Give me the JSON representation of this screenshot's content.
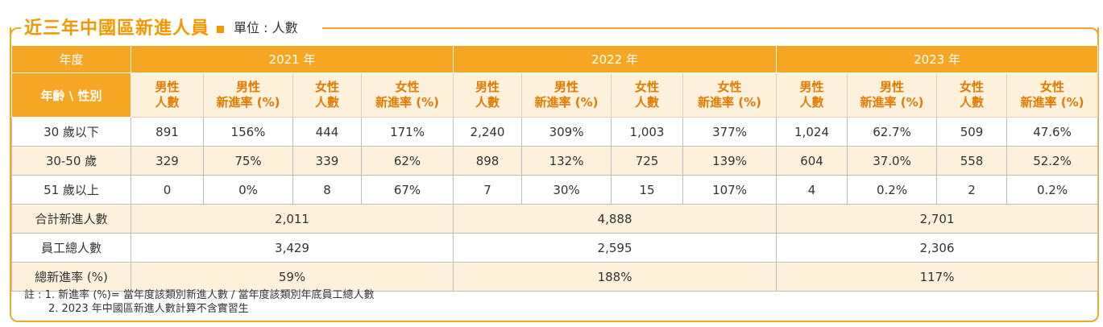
{
  "title": "近三年中國區新進人員",
  "unit": "單位 : 人數",
  "table": {
    "corner_top": "年度",
    "corner_bottom": "年齡 \\ 性別",
    "years": [
      "2021 年",
      "2022 年",
      "2023 年"
    ],
    "col_headers": [
      [
        "男性",
        "人數"
      ],
      [
        "男性",
        "新進率 (%)"
      ],
      [
        "女性",
        "人數"
      ],
      [
        "女性",
        "新進率 (%)"
      ]
    ],
    "rows": [
      {
        "label": "30 歲以下",
        "values": [
          "891",
          "156%",
          "444",
          "171%",
          "2,240",
          "309%",
          "1,003",
          "377%",
          "1,024",
          "62.7%",
          "509",
          "47.6%"
        ]
      },
      {
        "label": "30-50 歲",
        "values": [
          "329",
          "75%",
          "339",
          "62%",
          "898",
          "132%",
          "725",
          "139%",
          "604",
          "37.0%",
          "558",
          "52.2%"
        ]
      },
      {
        "label": "51 歲以上",
        "values": [
          "0",
          "0%",
          "8",
          "67%",
          "7",
          "30%",
          "15",
          "107%",
          "4",
          "0.2%",
          "2",
          "0.2%"
        ]
      }
    ],
    "summary": [
      {
        "label": "合計新進人數",
        "values": [
          "2,011",
          "4,888",
          "2,701"
        ]
      },
      {
        "label": "員工總人數",
        "values": [
          "3,429",
          "2,595",
          "2,306"
        ]
      },
      {
        "label": "總新進率 (%)",
        "values": [
          "59%",
          "188%",
          "117%"
        ]
      }
    ]
  },
  "notes": {
    "line1": "註 : 1. 新進率 (%)= 當年度該類別新進人數 / 當年度該類別年底員工總人數",
    "line2": "2. 2023 年中國區新進人數計算不含實習生"
  },
  "colors": {
    "accent": "#f5a623",
    "title": "#f39800",
    "light_band": "#fdf1dc"
  }
}
